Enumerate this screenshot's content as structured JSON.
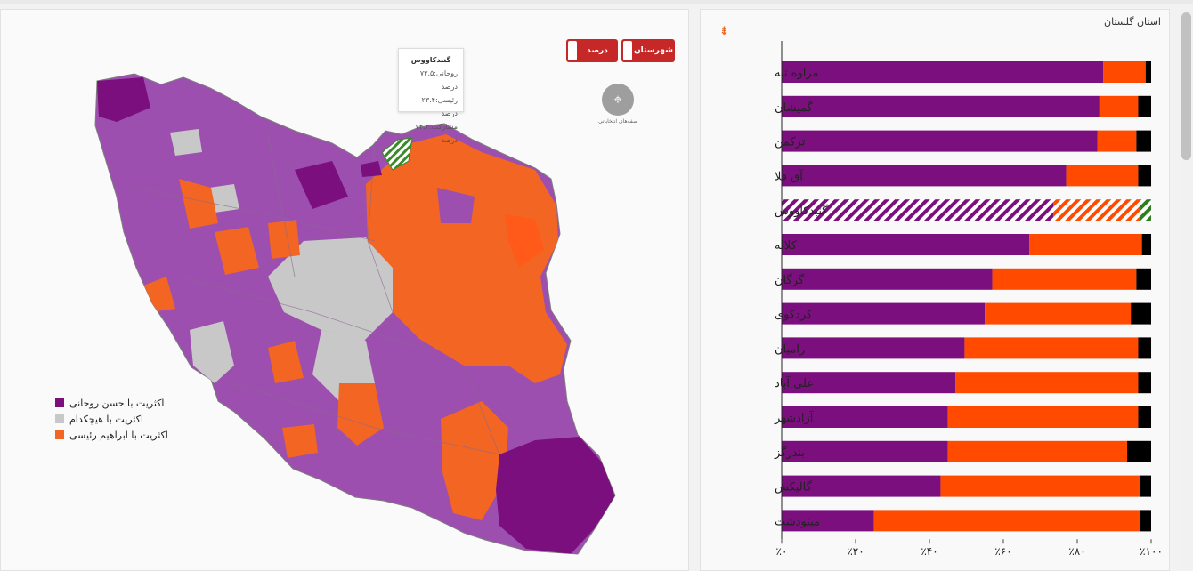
{
  "map": {
    "toggle_county": "شهرستان",
    "toggle_percent": "درصد",
    "tooltip": {
      "title": "گنبدکاووس",
      "line1": "روحانی:۷۳.۵ درصد",
      "line2": "رئیسی:۲۳.۴ درصد",
      "line3": "مشارکت:۷۴.۴ درصد"
    },
    "booth_label": "صفه‌های انتخاباتی",
    "legend": [
      {
        "label": "اکثریت با حسن روحانی",
        "color": "#7b0f7e"
      },
      {
        "label": "اکثریت با هیچکدام",
        "color": "#c8c8c8"
      },
      {
        "label": "اکثریت با ابراهیم رئیسی",
        "color": "#f26522"
      }
    ]
  },
  "chart_title": "استان گلستان",
  "chart_data": {
    "type": "bar",
    "orientation": "horizontal",
    "stacked": true,
    "xlim": [
      0,
      100
    ],
    "x_tick_labels": [
      "٪۰",
      "٪۲۰",
      "٪۴۰",
      "٪۶۰",
      "٪۸۰",
      "٪۱۰۰"
    ],
    "categories": [
      "مراوه تپه",
      "گمیشان",
      "ترکمن",
      "آق قلا",
      "گنبدکاووس",
      "کلاله",
      "گرگان",
      "کردکوی",
      "رامیان",
      "علی آباد",
      "آزادشهر",
      "بندرگز",
      "گالیکش",
      "مینودشت"
    ],
    "series": [
      {
        "key": "rouhani",
        "color": "#7b0f7e",
        "values": [
          87.0,
          86.0,
          85.5,
          77.0,
          73.5,
          67.0,
          57.0,
          55.0,
          49.5,
          47.0,
          45.0,
          45.0,
          43.0,
          25.0
        ]
      },
      {
        "key": "raisi",
        "color": "#ff4a00",
        "values": [
          11.5,
          10.5,
          10.5,
          19.5,
          23.4,
          30.5,
          39.0,
          39.5,
          47.0,
          49.5,
          51.5,
          48.5,
          54.0,
          72.0
        ]
      },
      {
        "key": "none",
        "color": "#000000",
        "values": [
          1.5,
          3.5,
          4.0,
          3.5,
          3.1,
          2.5,
          4.0,
          5.5,
          3.5,
          3.5,
          3.5,
          6.5,
          3.0,
          3.0
        ]
      }
    ],
    "highlighted_category": "گنبدکاووس"
  }
}
